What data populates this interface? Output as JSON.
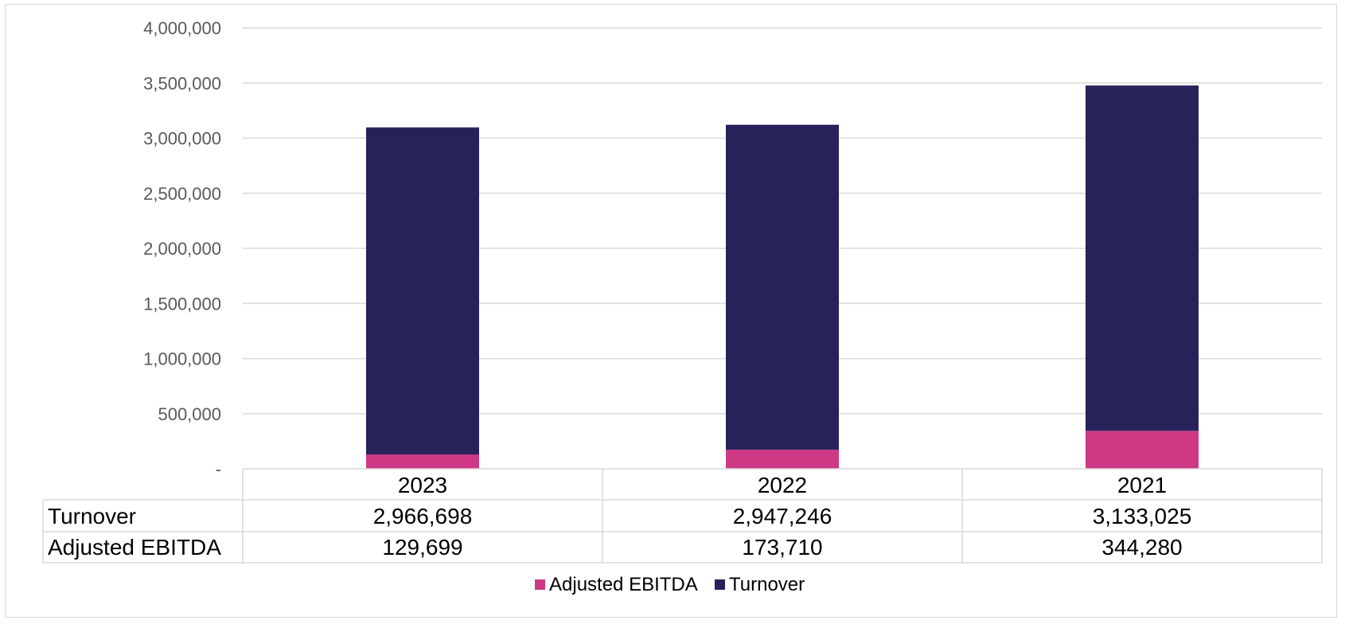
{
  "chart_data": {
    "type": "bar",
    "stacked": true,
    "categories": [
      "2023",
      "2022",
      "2021"
    ],
    "series": [
      {
        "name": "Adjusted EBITDA",
        "values": [
          129699,
          173710,
          344280
        ],
        "value_labels": [
          "129,699",
          "173,710",
          "344,280"
        ],
        "color": "#CD3985"
      },
      {
        "name": "Turnover",
        "values": [
          2966698,
          2947246,
          3133025
        ],
        "value_labels": [
          "2,966,698",
          "2,947,246",
          "3,133,025"
        ],
        "color": "#27225A"
      }
    ],
    "table_rows": [
      "Turnover",
      "Adjusted EBITDA"
    ],
    "ylim": [
      0,
      4000000
    ],
    "yticks": [
      0,
      500000,
      1000000,
      1500000,
      2000000,
      2500000,
      3000000,
      3500000,
      4000000
    ],
    "ytick_labels": [
      "-",
      "500,000",
      "1,000,000",
      "1,500,000",
      "2,000,000",
      "2,500,000",
      "3,000,000",
      "3,500,000",
      "4,000,000"
    ],
    "grid": true,
    "legend": {
      "placement": "bottom",
      "entries": [
        "Adjusted EBITDA",
        "Turnover"
      ]
    },
    "title": "",
    "xlabel": "",
    "ylabel": ""
  }
}
